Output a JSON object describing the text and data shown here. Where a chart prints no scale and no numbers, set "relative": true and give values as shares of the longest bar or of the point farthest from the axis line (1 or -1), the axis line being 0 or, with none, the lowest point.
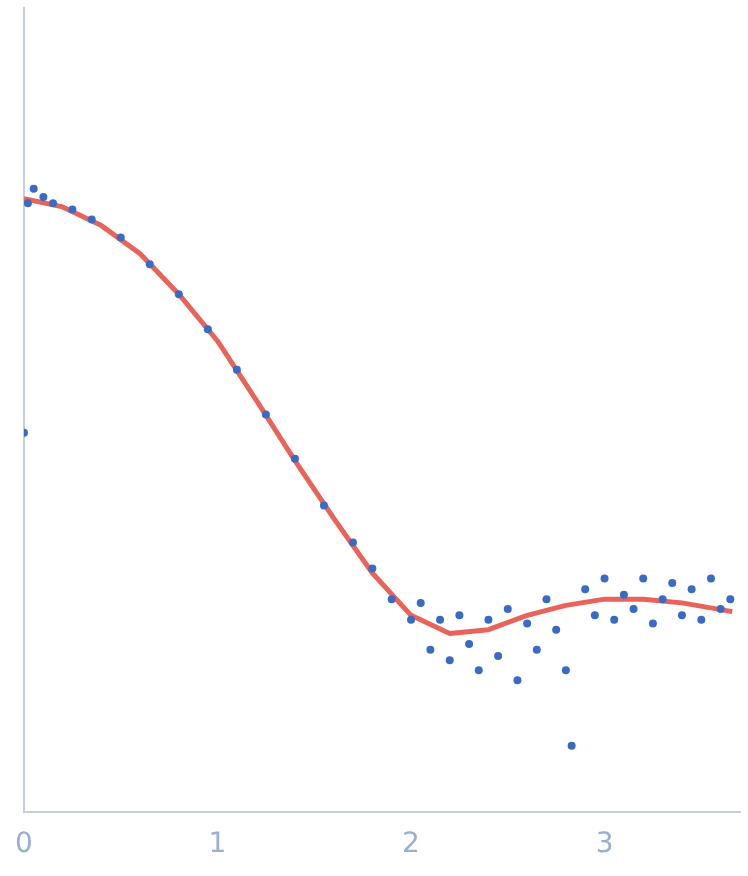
{
  "chart_data": {
    "type": "scatter",
    "relative": true,
    "grid": false,
    "legend": false,
    "marker": "circle",
    "xlim": [
      0,
      3.7
    ],
    "xticks": [
      0,
      1,
      2,
      3
    ],
    "tick_labels": "x",
    "series": [
      {
        "color": "#3a6bc4",
        "x": [
          0,
          0.02,
          0.05,
          0.1,
          0.15,
          0.25,
          0.35,
          0.5,
          0.65,
          0.8,
          0.95,
          1.1,
          1.25,
          1.4,
          1.55,
          1.7,
          1.8,
          1.9,
          2.0,
          2.05,
          2.1,
          2.15,
          2.2,
          2.25,
          2.3,
          2.35,
          2.4,
          2.45,
          2.5,
          2.55,
          2.6,
          2.65,
          2.7,
          2.75,
          2.8,
          2.83,
          2.9,
          2.95,
          3.0,
          3.05,
          3.1,
          3.15,
          3.2,
          3.25,
          3.3,
          3.35,
          3.4,
          3.45,
          3.5,
          3.55,
          3.6,
          3.65
        ],
        "values": [
          0.609,
          0.977,
          1,
          0.987,
          0.977,
          0.967,
          0.951,
          0.922,
          0.879,
          0.831,
          0.775,
          0.71,
          0.638,
          0.567,
          0.492,
          0.433,
          0.391,
          0.342,
          0.309,
          0.336,
          0.261,
          0.309,
          0.244,
          0.316,
          0.27,
          0.228,
          0.309,
          0.251,
          0.326,
          0.212,
          0.303,
          0.261,
          0.342,
          0.293,
          0.228,
          0.107,
          0.358,
          0.316,
          0.375,
          0.309,
          0.349,
          0.326,
          0.375,
          0.303,
          0.342,
          0.368,
          0.316,
          0.358,
          0.309,
          0.375,
          0.326,
          0.342
        ]
      },
      {
        "type": "line",
        "color": "#e8645a",
        "marker": "none",
        "x": [
          0,
          0.2,
          0.4,
          0.6,
          0.8,
          1.0,
          1.2,
          1.4,
          1.6,
          1.8,
          2.0,
          2.2,
          2.4,
          2.6,
          2.8,
          3.0,
          3.2,
          3.4,
          3.66
        ],
        "values": [
          0.984,
          0.971,
          0.941,
          0.896,
          0.831,
          0.756,
          0.661,
          0.564,
          0.472,
          0.384,
          0.316,
          0.287,
          0.293,
          0.316,
          0.332,
          0.342,
          0.342,
          0.336,
          0.322
        ]
      }
    ]
  }
}
